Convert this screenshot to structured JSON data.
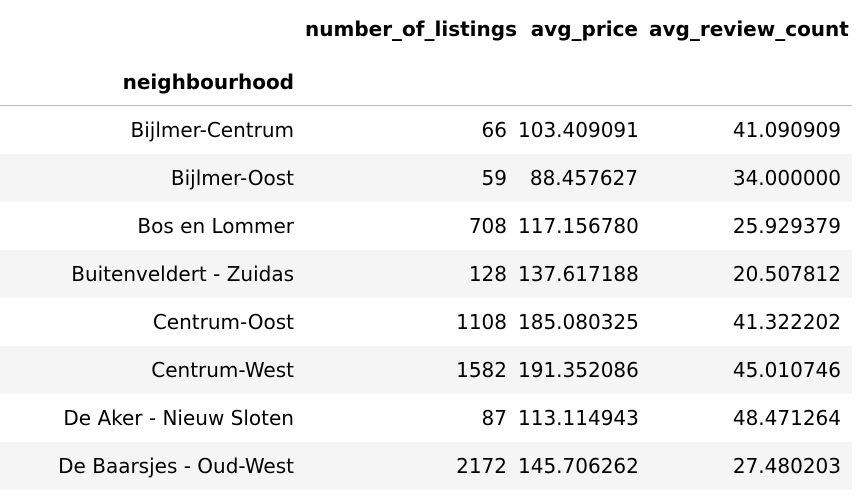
{
  "table": {
    "columns": [
      "number_of_listings",
      "avg_price",
      "avg_review_count"
    ],
    "index_name": "neighbourhood",
    "rows": [
      {
        "neighbourhood": "Bijlmer-Centrum",
        "number_of_listings": "66",
        "avg_price": "103.409091",
        "avg_review_count": "41.090909"
      },
      {
        "neighbourhood": "Bijlmer-Oost",
        "number_of_listings": "59",
        "avg_price": "88.457627",
        "avg_review_count": "34.000000"
      },
      {
        "neighbourhood": "Bos en Lommer",
        "number_of_listings": "708",
        "avg_price": "117.156780",
        "avg_review_count": "25.929379"
      },
      {
        "neighbourhood": "Buitenveldert - Zuidas",
        "number_of_listings": "128",
        "avg_price": "137.617188",
        "avg_review_count": "20.507812"
      },
      {
        "neighbourhood": "Centrum-Oost",
        "number_of_listings": "1108",
        "avg_price": "185.080325",
        "avg_review_count": "41.322202"
      },
      {
        "neighbourhood": "Centrum-West",
        "number_of_listings": "1582",
        "avg_price": "191.352086",
        "avg_review_count": "45.010746"
      },
      {
        "neighbourhood": "De Aker - Nieuw Sloten",
        "number_of_listings": "87",
        "avg_price": "113.114943",
        "avg_review_count": "48.471264"
      },
      {
        "neighbourhood": "De Baarsjes - Oud-West",
        "number_of_listings": "2172",
        "avg_price": "145.706262",
        "avg_review_count": "27.480203"
      }
    ]
  },
  "colors": {
    "stripe": "#f5f5f5",
    "header_rule": "#bdbdbd",
    "text": "#000000"
  }
}
